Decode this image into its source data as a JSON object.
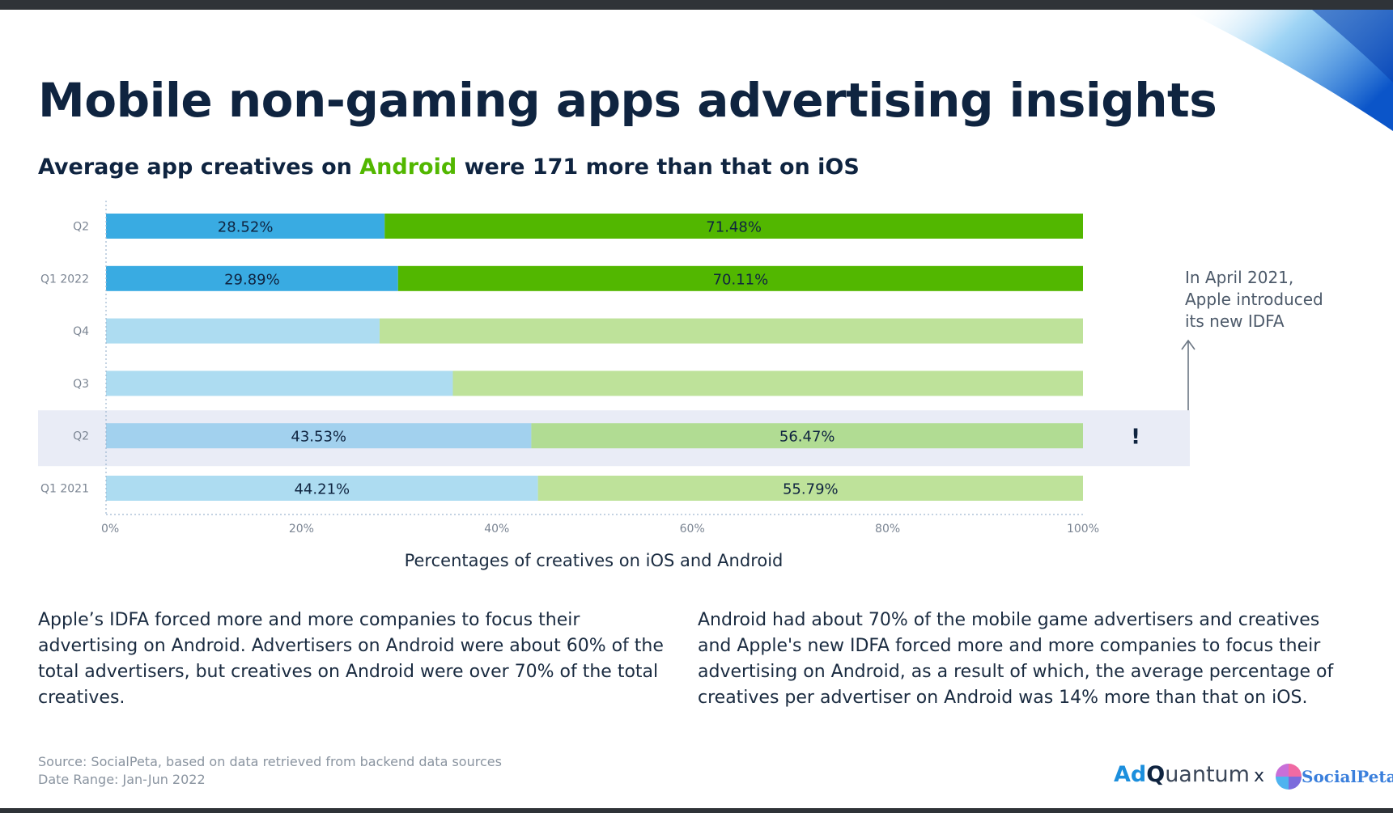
{
  "title": "Mobile non-gaming apps advertising insights",
  "subtitle": {
    "part1": "Average app creatives on ",
    "highlight": "Android",
    "part2": " were 171 more than that on iOS"
  },
  "colors": {
    "ios": "#39abe2",
    "android": "#52b700",
    "ios_light": "#addcf1",
    "android_light": "#bee29a",
    "ios_hl": "#a2d1ee",
    "android_hl": "#b1dc93",
    "highlight_band": "#e9ecf6",
    "accent": "#1c6fe0"
  },
  "chart_data": {
    "type": "bar",
    "orientation": "horizontal",
    "stacked": true,
    "categories": [
      "Q2",
      "Q1 2022",
      "Q4",
      "Q3",
      "Q2",
      "Q1 2021"
    ],
    "series": [
      {
        "name": "iOS",
        "values": [
          28.52,
          29.89,
          28.0,
          35.5,
          43.53,
          44.21
        ]
      },
      {
        "name": "Android",
        "values": [
          71.48,
          70.11,
          72.0,
          64.5,
          56.47,
          55.79
        ]
      }
    ],
    "data_labels": [
      [
        "28.52%",
        "71.48%"
      ],
      [
        "29.89%",
        "70.11%"
      ],
      [
        "",
        ""
      ],
      [
        "",
        ""
      ],
      [
        "43.53%",
        "56.47%"
      ],
      [
        "44.21%",
        "55.79%"
      ]
    ],
    "styles": [
      "bold",
      "bold",
      "light",
      "light",
      "highlight",
      "light"
    ],
    "highlighted_category_index": 4,
    "highlight_marker": "!",
    "xlim": [
      0,
      100
    ],
    "xticks": [
      "0%",
      "20%",
      "40%",
      "60%",
      "80%",
      "100%"
    ],
    "xlabel": "Percentages of creatives on iOS and Android",
    "ylabel": "",
    "legend": "none"
  },
  "annotation": {
    "lines": [
      "In April 2021,",
      "Apple introduced",
      "its new IDFA"
    ],
    "arrow": "up-arrow"
  },
  "notes": {
    "left": "Apple’s IDFA forced more and more companies to focus their advertising on Android. Advertisers on Android were about 60% of the total advertisers, but creatives on Android were over 70% of the total creatives.",
    "right": "Android had about 70% of the mobile game advertisers and creatives and Apple's new IDFA forced more and more companies to focus their advertising on Android, as a result of which, the average percentage of creatives per advertiser on Android was 14% more than that on iOS."
  },
  "source": {
    "line1": "Source: SocialPeta, based on data retrieved from backend data sources",
    "line2": "Date Range: Jan-Jun 2022"
  },
  "logos": {
    "adquantum_ad": "Ad",
    "adquantum_q": "Q",
    "adquantum_rest": "uantum",
    "separator": "x",
    "socialpeta": "SocialPeta"
  }
}
